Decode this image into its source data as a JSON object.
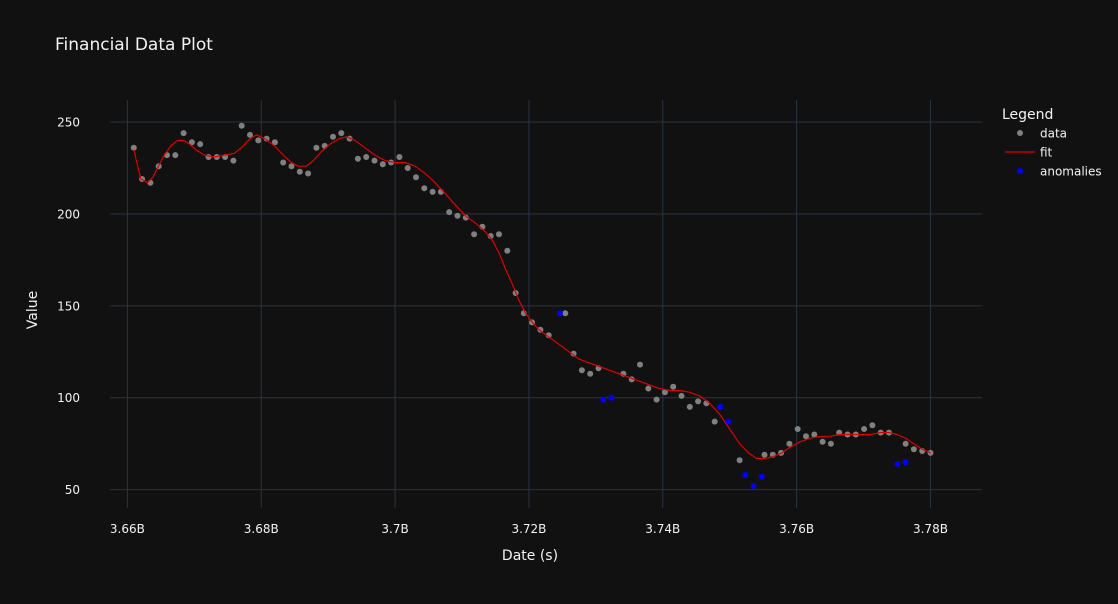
{
  "chart_data": {
    "type": "scatter",
    "title": "Financial Data Plot",
    "xlabel": "Date (s)",
    "ylabel": "Value",
    "x_ticks": [
      {
        "value": 3660000000,
        "label": "3.66B"
      },
      {
        "value": 3680000000,
        "label": "3.68B"
      },
      {
        "value": 3700000000,
        "label": "3.7B"
      },
      {
        "value": 3720000000,
        "label": "3.72B"
      },
      {
        "value": 3740000000,
        "label": "3.74B"
      },
      {
        "value": 3760000000,
        "label": "3.76B"
      },
      {
        "value": 3780000000,
        "label": "3.78B"
      }
    ],
    "y_ticks": [
      {
        "value": 50,
        "label": "50"
      },
      {
        "value": 100,
        "label": "100"
      },
      {
        "value": 150,
        "label": "150"
      },
      {
        "value": 200,
        "label": "200"
      },
      {
        "value": 250,
        "label": "250"
      }
    ],
    "xlim": [
      3657400000,
      3787700000
    ],
    "ylim": [
      40,
      262
    ],
    "grid": true,
    "legend": {
      "title": "Legend",
      "position": "top-right"
    },
    "series": [
      {
        "name": "data",
        "mode": "markers",
        "color": "#808080",
        "x": [
          3660960000,
          3662200000,
          3663440000,
          3664680000,
          3665920000,
          3667160000,
          3668400000,
          3669640000,
          3670880000,
          3672120000,
          3673360000,
          3674600000,
          3675840000,
          3677080000,
          3678320000,
          3679560000,
          3680800000,
          3682040000,
          3683280000,
          3684520000,
          3685760000,
          3687000000,
          3688240000,
          3689480000,
          3690720000,
          3691960000,
          3693200000,
          3694440000,
          3695680000,
          3696920000,
          3698160000,
          3699400000,
          3700640000,
          3701880000,
          3703120000,
          3704360000,
          3705600000,
          3706840000,
          3708080000,
          3709320000,
          3710560000,
          3711800000,
          3713040000,
          3714280000,
          3715520000,
          3716760000,
          3718000000,
          3719240000,
          3720480000,
          3721720000,
          3722960000,
          3725440000,
          3726680000,
          3727920000,
          3729160000,
          3730400000,
          3734120000,
          3735360000,
          3736600000,
          3737840000,
          3739080000,
          3740320000,
          3741560000,
          3742800000,
          3744040000,
          3745280000,
          3746520000,
          3747760000,
          3751480000,
          3755200000,
          3756440000,
          3757680000,
          3758920000,
          3760160000,
          3761400000,
          3762640000,
          3763880000,
          3765120000,
          3766360000,
          3767600000,
          3768840000,
          3770080000,
          3771320000,
          3772560000,
          3773800000,
          3776280000,
          3777520000,
          3778760000,
          3780000000
        ],
        "y": [
          236,
          219,
          217,
          226,
          232,
          232,
          244,
          239,
          238,
          231,
          231,
          231,
          229,
          248,
          243,
          240,
          241,
          239,
          228,
          226,
          223,
          222,
          236,
          237,
          242,
          244,
          241,
          230,
          231,
          229,
          227,
          228,
          231,
          225,
          220,
          214,
          212,
          212,
          201,
          199,
          198,
          189,
          193,
          188,
          189,
          180,
          157,
          146,
          141,
          137,
          134,
          146,
          124,
          115,
          113,
          116,
          113,
          110,
          118,
          105,
          99,
          103,
          106,
          101,
          95,
          98,
          97,
          87,
          66,
          69,
          69,
          70,
          75,
          83,
          79,
          80,
          76,
          75,
          81,
          80,
          80,
          83,
          85,
          81,
          81,
          75,
          72,
          71,
          70
        ]
      },
      {
        "name": "fit",
        "mode": "lines",
        "color": "#e00000",
        "x": [
          3660960000,
          3661400000,
          3662000000,
          3663000000,
          3663800000,
          3664500000,
          3665500000,
          3666500000,
          3667500000,
          3668400000,
          3669300000,
          3670200000,
          3671500000,
          3673000000,
          3674500000,
          3676000000,
          3677300000,
          3678300000,
          3679300000,
          3680500000,
          3682000000,
          3683300000,
          3684500000,
          3685500000,
          3686700000,
          3687800000,
          3689000000,
          3690300000,
          3691600000,
          3692800000,
          3694000000,
          3695500000,
          3697000000,
          3698500000,
          3700000000,
          3701500000,
          3703000000,
          3704500000,
          3706000000,
          3707500000,
          3709000000,
          3710500000,
          3712000000,
          3713300000,
          3714500000,
          3715500000,
          3716500000,
          3717500000,
          3718500000,
          3719500000,
          3720500000,
          3721500000,
          3723000000,
          3724500000,
          3726000000,
          3727500000,
          3729000000,
          3730500000,
          3732000000,
          3733500000,
          3735000000,
          3736500000,
          3738000000,
          3739500000,
          3741000000,
          3742500000,
          3744000000,
          3745500000,
          3747000000,
          3748500000,
          3750000000,
          3751500000,
          3752800000,
          3754000000,
          3755300000,
          3756500000,
          3757800000,
          3759000000,
          3760500000,
          3762000000,
          3763500000,
          3765000000,
          3766500000,
          3768000000,
          3769500000,
          3771000000,
          3772500000,
          3773800000,
          3775000000,
          3776300000,
          3777500000,
          3778800000,
          3780000000
        ],
        "y": [
          235,
          228,
          219,
          217,
          220,
          225,
          232,
          237,
          240,
          240,
          238,
          235,
          232,
          231,
          232,
          233,
          237,
          241,
          243,
          241,
          237,
          232,
          228,
          226,
          226,
          229,
          234,
          238,
          241,
          242,
          240,
          236,
          232,
          229,
          228,
          228,
          226,
          222,
          217,
          211,
          205,
          199,
          195,
          191,
          186,
          179,
          170,
          162,
          153,
          146,
          141,
          137,
          133,
          129,
          125,
          121,
          119,
          117,
          115,
          113,
          111,
          109,
          107,
          105,
          104,
          104,
          103,
          101,
          97,
          91,
          83,
          75,
          70,
          67,
          67,
          68,
          70,
          73,
          76,
          78,
          79,
          79,
          80,
          80,
          80,
          80,
          81,
          81,
          80,
          78,
          75,
          72,
          70
        ]
      },
      {
        "name": "anomalies",
        "mode": "markers",
        "color": "#0000ff",
        "x": [
          3724620000,
          3731100000,
          3732340000,
          3748600000,
          3749840000,
          3752320000,
          3753560000,
          3754800000,
          3775040000,
          3776280000
        ],
        "y": [
          146,
          99,
          100,
          95,
          87,
          58,
          52,
          57,
          64,
          65
        ]
      }
    ]
  }
}
